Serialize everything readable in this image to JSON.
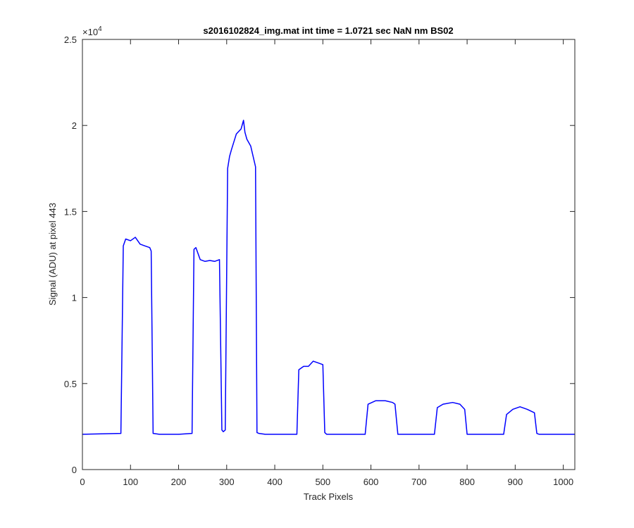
{
  "chart_data": {
    "type": "line",
    "title": "s2016102824_img.mat int time = 1.0721 sec  NaN nm BS02",
    "xlabel": "Track Pixels",
    "ylabel": "Signal (ADU) at pixel 443",
    "xlim": [
      0,
      1024
    ],
    "ylim": [
      0,
      25000
    ],
    "x_ticks": [
      0,
      100,
      200,
      300,
      400,
      500,
      600,
      700,
      800,
      900,
      1000
    ],
    "x_tick_labels": [
      "0",
      "100",
      "200",
      "300",
      "400",
      "500",
      "600",
      "700",
      "800",
      "900",
      "1000"
    ],
    "y_ticks": [
      0,
      5000,
      10000,
      15000,
      20000,
      25000
    ],
    "y_tick_labels": [
      "0",
      "0.5",
      "1",
      "1.5",
      "2",
      "2.5"
    ],
    "y_exponent_base": "×10",
    "y_exponent_power": "4",
    "grid": false,
    "line_color": "#0000ff",
    "series": [
      {
        "x": [
          0,
          80,
          85,
          90,
          100,
          110,
          120,
          130,
          140,
          143,
          147,
          160,
          200,
          228,
          232,
          236,
          245,
          255,
          265,
          275,
          285,
          290,
          293,
          297,
          302,
          306,
          310,
          320,
          330,
          335,
          338,
          342,
          350,
          360,
          363,
          367,
          380,
          446,
          450,
          460,
          470,
          480,
          490,
          500,
          504,
          508,
          520,
          588,
          594,
          610,
          630,
          645,
          650,
          656,
          680,
          732,
          738,
          750,
          770,
          785,
          795,
          800,
          810,
          876,
          882,
          895,
          910,
          925,
          940,
          945,
          950,
          1024
        ],
        "y": [
          2050,
          2100,
          13000,
          13400,
          13300,
          13500,
          13100,
          13000,
          12900,
          12700,
          2100,
          2050,
          2050,
          2100,
          12800,
          12900,
          12200,
          12100,
          12150,
          12100,
          12200,
          2300,
          2200,
          2300,
          17500,
          18200,
          18600,
          19500,
          19800,
          20300,
          19600,
          19200,
          18800,
          17600,
          2150,
          2100,
          2050,
          2050,
          5800,
          6000,
          6000,
          6300,
          6200,
          6100,
          2150,
          2050,
          2050,
          2050,
          3800,
          4000,
          4000,
          3900,
          3800,
          2050,
          2050,
          2050,
          3600,
          3800,
          3900,
          3800,
          3500,
          2050,
          2050,
          2050,
          3200,
          3500,
          3650,
          3500,
          3300,
          2100,
          2050,
          2050
        ]
      }
    ]
  }
}
